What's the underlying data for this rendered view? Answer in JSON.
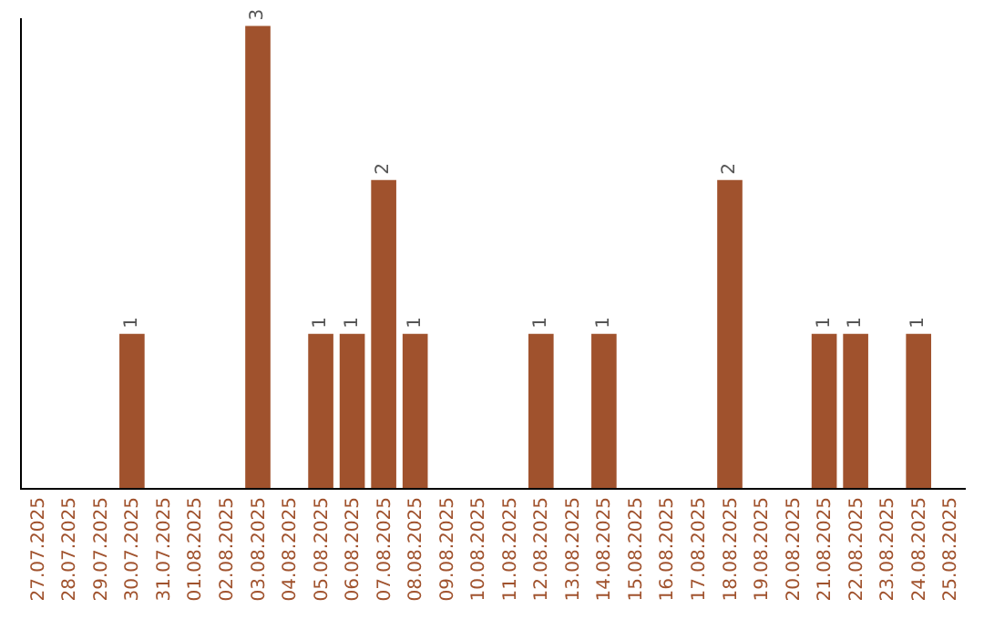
{
  "chart_data": {
    "type": "bar",
    "categories": [
      "27.07.2025",
      "28.07.2025",
      "29.07.2025",
      "30.07.2025",
      "31.07.2025",
      "01.08.2025",
      "02.08.2025",
      "03.08.2025",
      "04.08.2025",
      "05.08.2025",
      "06.08.2025",
      "07.08.2025",
      "08.08.2025",
      "09.08.2025",
      "10.08.2025",
      "11.08.2025",
      "12.08.2025",
      "13.08.2025",
      "14.08.2025",
      "15.08.2025",
      "16.08.2025",
      "17.08.2025",
      "18.08.2025",
      "19.08.2025",
      "20.08.2025",
      "21.08.2025",
      "22.08.2025",
      "23.08.2025",
      "24.08.2025",
      "25.08.2025"
    ],
    "values": [
      0,
      0,
      0,
      1,
      0,
      0,
      0,
      3,
      0,
      1,
      1,
      2,
      1,
      0,
      0,
      0,
      1,
      0,
      1,
      0,
      0,
      0,
      2,
      0,
      0,
      1,
      1,
      0,
      1,
      0
    ],
    "value_labels": [
      null,
      null,
      null,
      "1",
      null,
      null,
      null,
      "3",
      null,
      "1",
      "1",
      "2",
      "1",
      null,
      null,
      null,
      "1",
      null,
      "1",
      null,
      null,
      null,
      "2",
      null,
      null,
      "1",
      "1",
      null,
      "1",
      null
    ],
    "color": "#a0522d",
    "ylim": [
      0,
      3.05
    ],
    "tick_labels": "x",
    "grid": false,
    "legend": false
  }
}
